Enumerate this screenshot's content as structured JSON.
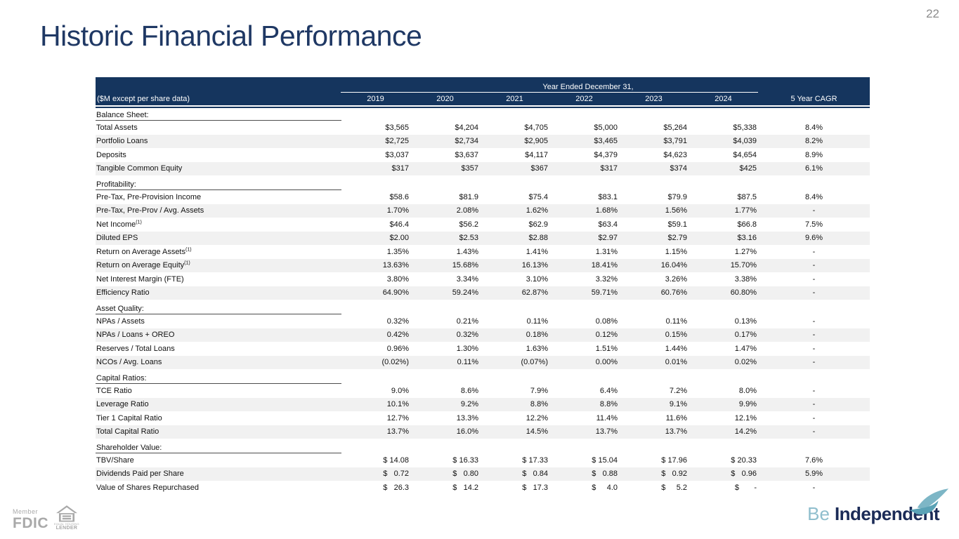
{
  "page_number": "22",
  "title": "Historic Financial Performance",
  "colors": {
    "header_navy": "#15355e",
    "title_navy": "#1f3864",
    "stripe_gray": "#f1f1f1",
    "logo_gray": "#a9a9a9",
    "tagline_light_blue": "#8fbecd",
    "tagline_dark_navy": "#1b2b57",
    "bird_teal": "#7db6c6"
  },
  "table": {
    "header": {
      "group_label": "Year Ended December 31,",
      "unit_label": "($M except per share data)",
      "year_columns": [
        "2019",
        "2020",
        "2021",
        "2022",
        "2023",
        "2024"
      ],
      "cagr_label": "5 Year CAGR"
    },
    "sections": [
      {
        "name": "Balance Sheet:",
        "rows": [
          {
            "label": "Total Assets",
            "values": [
              "$3,565",
              "$4,204",
              "$4,705",
              "$5,000",
              "$5,264",
              "$5,338"
            ],
            "cagr": "8.4%"
          },
          {
            "label": "Portfolio Loans",
            "values": [
              "$2,725",
              "$2,734",
              "$2,905",
              "$3,465",
              "$3,791",
              "$4,039"
            ],
            "cagr": "8.2%"
          },
          {
            "label": "Deposits",
            "values": [
              "$3,037",
              "$3,637",
              "$4,117",
              "$4,379",
              "$4,623",
              "$4,654"
            ],
            "cagr": "8.9%"
          },
          {
            "label": "Tangible Common Equity",
            "values": [
              "$317",
              "$357",
              "$367",
              "$317",
              "$374",
              "$425"
            ],
            "cagr": "6.1%"
          }
        ]
      },
      {
        "name": "Profitability:",
        "rows": [
          {
            "label": "Pre-Tax, Pre-Provision Income",
            "values": [
              "$58.6",
              "$81.9",
              "$75.4",
              "$83.1",
              "$79.9",
              "$87.5"
            ],
            "cagr": "8.4%"
          },
          {
            "label": "Pre-Tax, Pre-Prov / Avg. Assets",
            "values": [
              "1.70%",
              "2.08%",
              "1.62%",
              "1.68%",
              "1.56%",
              "1.77%"
            ],
            "cagr": "-"
          },
          {
            "label": "Net Income",
            "sup": "(1)",
            "values": [
              "$46.4",
              "$56.2",
              "$62.9",
              "$63.4",
              "$59.1",
              "$66.8"
            ],
            "cagr": "7.5%"
          },
          {
            "label": "Diluted EPS",
            "values": [
              "$2.00",
              "$2.53",
              "$2.88",
              "$2.97",
              "$2.79",
              "$3.16"
            ],
            "cagr": "9.6%"
          },
          {
            "label": "Return on Average Assets",
            "sup": "(1)",
            "values": [
              "1.35%",
              "1.43%",
              "1.41%",
              "1.31%",
              "1.15%",
              "1.27%"
            ],
            "cagr": "-"
          },
          {
            "label": "Return on Average Equity",
            "sup": "(1)",
            "values": [
              "13.63%",
              "15.68%",
              "16.13%",
              "18.41%",
              "16.04%",
              "15.70%"
            ],
            "cagr": "-"
          },
          {
            "label": "Net Interest Margin (FTE)",
            "values": [
              "3.80%",
              "3.34%",
              "3.10%",
              "3.32%",
              "3.26%",
              "3.38%"
            ],
            "cagr": "-"
          },
          {
            "label": "Efficiency Ratio",
            "values": [
              "64.90%",
              "59.24%",
              "62.87%",
              "59.71%",
              "60.76%",
              "60.80%"
            ],
            "cagr": "-"
          }
        ]
      },
      {
        "name": "Asset Quality:",
        "rows": [
          {
            "label": "NPAs / Assets",
            "values": [
              "0.32%",
              "0.21%",
              "0.11%",
              "0.08%",
              "0.11%",
              "0.13%"
            ],
            "cagr": "-"
          },
          {
            "label": "NPAs / Loans + OREO",
            "values": [
              "0.42%",
              "0.32%",
              "0.18%",
              "0.12%",
              "0.15%",
              "0.17%"
            ],
            "cagr": "-"
          },
          {
            "label": "Reserves / Total Loans",
            "values": [
              "0.96%",
              "1.30%",
              "1.63%",
              "1.51%",
              "1.44%",
              "1.47%"
            ],
            "cagr": "-"
          },
          {
            "label": "NCOs / Avg. Loans",
            "values": [
              "(0.02%)",
              "0.11%",
              "(0.07%)",
              "0.00%",
              "0.01%",
              "0.02%"
            ],
            "cagr": "-"
          }
        ]
      },
      {
        "name": "Capital Ratios:",
        "rows": [
          {
            "label": "TCE Ratio",
            "values": [
              "9.0%",
              "8.6%",
              "7.9%",
              "6.4%",
              "7.2%",
              "8.0%"
            ],
            "cagr": "-"
          },
          {
            "label": "Leverage Ratio",
            "values": [
              "10.1%",
              "9.2%",
              "8.8%",
              "8.8%",
              "9.1%",
              "9.9%"
            ],
            "cagr": "-"
          },
          {
            "label": "Tier 1 Capital Ratio",
            "values": [
              "12.7%",
              "13.3%",
              "12.2%",
              "11.4%",
              "11.6%",
              "12.1%"
            ],
            "cagr": "-"
          },
          {
            "label": "Total Capital Ratio",
            "values": [
              "13.7%",
              "16.0%",
              "14.5%",
              "13.7%",
              "13.7%",
              "14.2%"
            ],
            "cagr": "-"
          }
        ]
      },
      {
        "name": "Shareholder Value:",
        "rows": [
          {
            "label": "TBV/Share",
            "values": [
              "$ 14.08",
              "$ 16.33",
              "$ 17.33",
              "$ 15.04",
              "$ 17.96",
              "$ 20.33"
            ],
            "cagr": "7.6%"
          },
          {
            "label": "Dividends Paid per Share",
            "values": [
              "$   0.72",
              "$   0.80",
              "$   0.84",
              "$   0.88",
              "$   0.92",
              "$   0.96"
            ],
            "cagr": "5.9%"
          },
          {
            "label": "Value of Shares Repurchased",
            "values": [
              "$   26.3",
              "$   14.2",
              "$   17.3",
              "$     4.0",
              "$     5.2",
              "$       -"
            ],
            "cagr": "-"
          }
        ]
      }
    ]
  },
  "footer": {
    "member_label": "Member",
    "fdic_label": "FDIC",
    "ehl_line1": "EQUAL HOUSING",
    "ehl_line2": "LENDER",
    "tagline_light": "Be",
    "tagline_bold": "Independent"
  }
}
